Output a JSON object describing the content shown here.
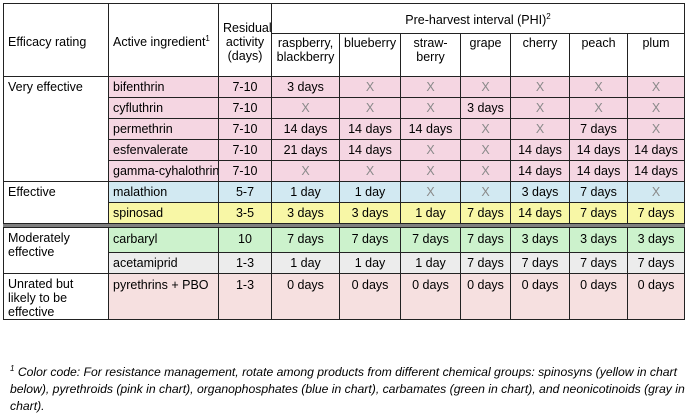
{
  "header": {
    "efficacy_rating": "Efficacy rating",
    "active_ingredient": "Active ingredient",
    "active_ingredient_sup": "1",
    "residual_activity": "Residual activity (days)",
    "phi_title": "Pre-harvest interval (PHI)",
    "phi_sup": "2",
    "crops": [
      "raspberry, blackberry",
      "blueberry",
      "straw-berry",
      "grape",
      "cherry",
      "peach",
      "plum"
    ]
  },
  "groups": {
    "very_effective": "Very effective",
    "effective": "Effective",
    "moderately_effective": "Moderately effective",
    "unrated": "Unrated but likely to be effective"
  },
  "rows": [
    {
      "ingredient": "bifenthrin",
      "residual": "7-10",
      "phi": [
        "3 days",
        "X",
        "X",
        "X",
        "X",
        "X",
        "X"
      ]
    },
    {
      "ingredient": "cyfluthrin",
      "residual": "7-10",
      "phi": [
        "X",
        "X",
        "X",
        "3 days",
        "X",
        "X",
        "X"
      ]
    },
    {
      "ingredient": "permethrin",
      "residual": "7-10",
      "phi": [
        "14 days",
        "14 days",
        "14 days",
        "X",
        "X",
        "7 days",
        "X"
      ]
    },
    {
      "ingredient": "esfenvalerate",
      "residual": "7-10",
      "phi": [
        "21 days",
        "14 days",
        "X",
        "X",
        "14 days",
        "14 days",
        "14 days"
      ]
    },
    {
      "ingredient": "gamma-cyhalothrin",
      "residual": "7-10",
      "phi": [
        "X",
        "X",
        "X",
        "X",
        "14 days",
        "14 days",
        "14 days"
      ]
    },
    {
      "ingredient": "malathion",
      "residual": "5-7",
      "phi": [
        "1 day",
        "1 day",
        "X",
        "X",
        "3 days",
        "7 days",
        "X"
      ]
    },
    {
      "ingredient": "spinosad",
      "residual": "3-5",
      "phi": [
        "3 days",
        "3 days",
        "1 day",
        "7 days",
        "14 days",
        "7 days",
        "7 days"
      ]
    },
    {
      "ingredient": "carbaryl",
      "residual": "10",
      "phi": [
        "7 days",
        "7 days",
        "7 days",
        "7 days",
        "3 days",
        "3 days",
        "3 days"
      ]
    },
    {
      "ingredient": "acetamiprid",
      "residual": "1-3",
      "phi": [
        "1 day",
        "1 day",
        "1 day",
        "7 days",
        "7 days",
        "7 days",
        "7 days"
      ]
    },
    {
      "ingredient": "pyrethrins + PBO",
      "residual": "1-3",
      "phi": [
        "0 days",
        "0 days",
        "0 days",
        "0 days",
        "0 days",
        "0 days",
        "0 days"
      ]
    }
  ],
  "colors": {
    "pyrethroids_pink": "#f5d6e2",
    "organophosphates_blue": "#d2e9f2",
    "spinosyns_yellow": "#f8f7a6",
    "carbamates_green": "#ccf2cc",
    "neonicotinoids_gray": "#ececec",
    "pyrethrins_light_pink": "#f6e0e0",
    "separator_gray": "#7f7f7f"
  },
  "footnote": {
    "mark": "1",
    "text": "Color code:  For resistance management, rotate among products from different chemical groups: spinosyns (yellow in chart below), pyrethroids (pink in chart), organophosphates (blue in chart), carbamates (green in chart), and neonicotinoids (gray in chart)."
  }
}
